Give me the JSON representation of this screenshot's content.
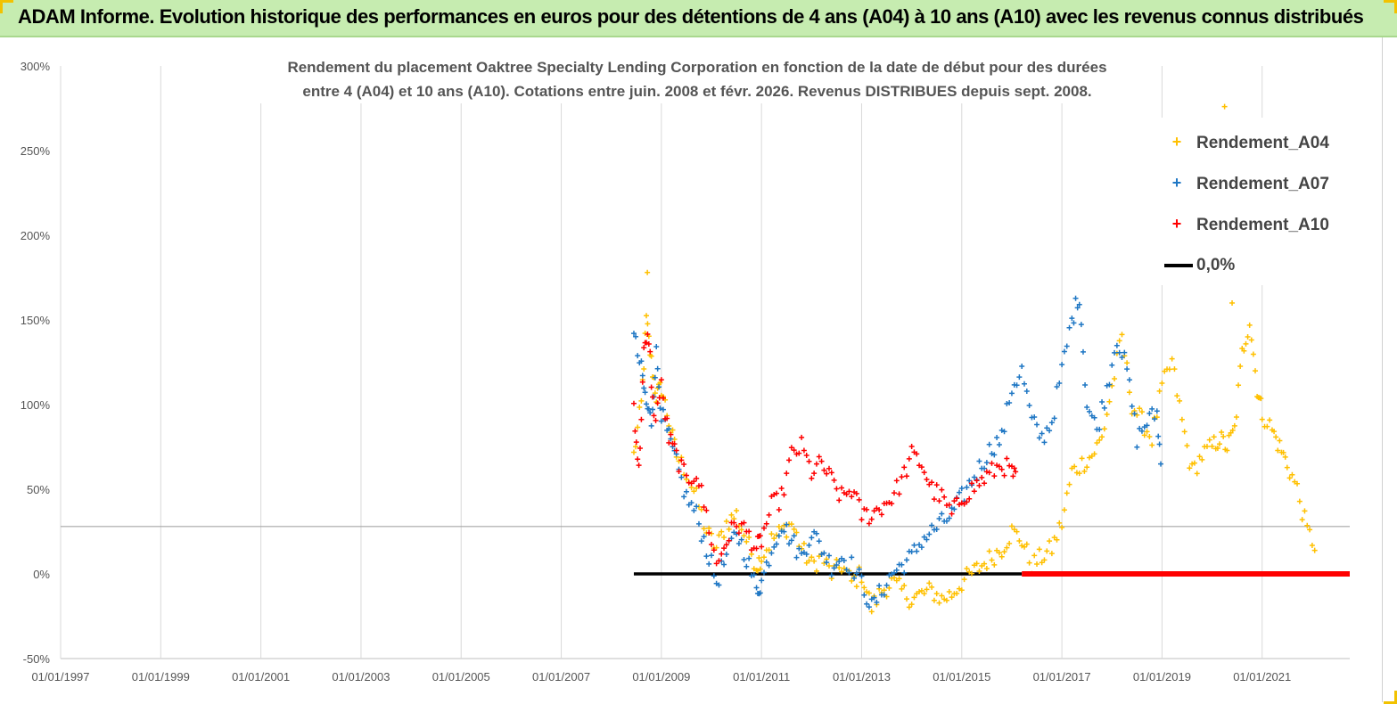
{
  "header": {
    "title": "ADAM Informe. Evolution historique des performances en euros pour des détentions de 4 ans (A04) à 10 ans (A10) avec les revenus connus distribués"
  },
  "chart_data": {
    "type": "scatter",
    "title_line1": "Rendement du placement Oaktree Specialty Lending Corporation en fonction de la date de début pour des durées",
    "title_line2": "entre 4 (A04) et 10 ans (A10).  Cotations entre juin. 2008 et févr. 2026. Revenus DISTRIBUES depuis sept. 2008.",
    "xlabel": "",
    "ylabel": "",
    "xlim": [
      1997.0,
      2022.75
    ],
    "ylim": [
      -50,
      300
    ],
    "yticks": [
      -50,
      0,
      50,
      100,
      150,
      200,
      250,
      300
    ],
    "ytick_labels": [
      "-50%",
      "0%",
      "50%",
      "100%",
      "150%",
      "200%",
      "250%",
      "300%"
    ],
    "xticks": [
      1997,
      1999,
      2001,
      2003,
      2005,
      2007,
      2009,
      2011,
      2013,
      2015,
      2017,
      2019,
      2021
    ],
    "xtick_labels": [
      "01/01/1997",
      "01/01/1999",
      "01/01/2001",
      "01/01/2003",
      "01/01/2005",
      "01/01/2007",
      "01/01/2009",
      "01/01/2011",
      "01/01/2013",
      "01/01/2015",
      "01/01/2017",
      "01/01/2019",
      "01/01/2021"
    ],
    "vertical_grid": true,
    "horizontal_line_at": 28,
    "legend_position": "top-right",
    "series": [
      {
        "name": "Rendement_A04",
        "color": "#ffc000",
        "marker": "plus",
        "x": [
          2008.45,
          2008.6,
          2008.7,
          2008.8,
          2008.9,
          2009.0,
          2009.15,
          2009.3,
          2009.5,
          2009.7,
          2009.9,
          2010.1,
          2010.3,
          2010.5,
          2010.7,
          2010.9,
          2011.0,
          2011.2,
          2011.4,
          2011.6,
          2011.8,
          2012.0,
          2012.2,
          2012.4,
          2012.6,
          2012.8,
          2013.0,
          2013.2,
          2013.4,
          2013.6,
          2013.8,
          2014.0,
          2014.2,
          2014.4,
          2014.6,
          2014.8,
          2015.0,
          2015.2,
          2015.4,
          2015.6,
          2015.8,
          2016.0,
          2016.2,
          2016.4,
          2016.6,
          2016.8,
          2017.0,
          2017.2,
          2017.4,
          2017.6,
          2017.8,
          2018.0,
          2018.2,
          2018.4,
          2018.6,
          2018.8,
          2019.0,
          2019.2,
          2019.4,
          2019.6,
          2019.8,
          2020.0,
          2020.15,
          2020.3,
          2020.45,
          2020.6,
          2020.75,
          2020.9,
          2021.0,
          2021.2,
          2021.35,
          2021.5,
          2021.7,
          2021.9,
          2022.1
        ],
        "y": [
          70,
          100,
          150,
          125,
          105,
          110,
          90,
          70,
          60,
          45,
          25,
          15,
          30,
          35,
          20,
          5,
          10,
          20,
          25,
          30,
          15,
          5,
          10,
          0,
          5,
          -5,
          0,
          -20,
          -10,
          -5,
          -10,
          -15,
          -12,
          -10,
          -15,
          -12,
          -5,
          0,
          5,
          10,
          15,
          25,
          20,
          5,
          10,
          15,
          30,
          60,
          65,
          70,
          80,
          110,
          140,
          100,
          90,
          80,
          110,
          125,
          90,
          60,
          70,
          75,
          80,
          75,
          85,
          130,
          150,
          110,
          95,
          85,
          75,
          65,
          50,
          25,
          15
        ],
        "outliers": [
          {
            "x": 2008.72,
            "y": 178
          },
          {
            "x": 2020.25,
            "y": 276
          },
          {
            "x": 2020.4,
            "y": 160
          }
        ]
      },
      {
        "name": "Rendement_A07",
        "color": "#1f77c4",
        "marker": "plus",
        "x": [
          2008.45,
          2008.6,
          2008.7,
          2008.8,
          2008.9,
          2009.0,
          2009.15,
          2009.3,
          2009.5,
          2009.7,
          2009.9,
          2010.1,
          2010.3,
          2010.5,
          2010.7,
          2010.9,
          2011.0,
          2011.2,
          2011.4,
          2011.6,
          2011.8,
          2012.0,
          2012.2,
          2012.4,
          2012.6,
          2012.8,
          2013.0,
          2013.2,
          2013.4,
          2013.6,
          2013.8,
          2014.0,
          2014.2,
          2014.4,
          2014.6,
          2014.8,
          2015.0,
          2015.2,
          2015.4,
          2015.6,
          2015.8,
          2016.0,
          2016.2,
          2016.4,
          2016.6,
          2016.8,
          2017.0,
          2017.2,
          2017.35,
          2017.5,
          2017.7,
          2017.9,
          2018.1,
          2018.3,
          2018.5,
          2018.7,
          2018.9,
          2019.0
        ],
        "y": [
          140,
          120,
          100,
          90,
          130,
          95,
          80,
          65,
          45,
          35,
          15,
          -5,
          10,
          25,
          10,
          -10,
          -5,
          15,
          30,
          20,
          10,
          25,
          15,
          5,
          10,
          5,
          -5,
          -20,
          -10,
          0,
          5,
          10,
          20,
          25,
          30,
          35,
          45,
          55,
          65,
          75,
          80,
          110,
          120,
          90,
          80,
          90,
          120,
          150,
          165,
          100,
          85,
          110,
          140,
          120,
          80,
          90,
          95,
          55
        ]
      },
      {
        "name": "Rendement_A10",
        "color": "#ff0000",
        "marker": "plus",
        "x": [
          2008.45,
          2008.55,
          2008.65,
          2008.75,
          2008.85,
          2009.0,
          2009.15,
          2009.3,
          2009.5,
          2009.7,
          2009.9,
          2010.1,
          2010.3,
          2010.5,
          2010.7,
          2010.9,
          2011.0,
          2011.2,
          2011.4,
          2011.6,
          2011.8,
          2012.0,
          2012.2,
          2012.4,
          2012.6,
          2012.8,
          2013.0,
          2013.2,
          2013.4,
          2013.6,
          2013.8,
          2014.0,
          2014.2,
          2014.4,
          2014.6,
          2014.8,
          2015.0,
          2015.2,
          2015.4,
          2015.6,
          2015.8,
          2016.0,
          2016.1
        ],
        "y": [
          100,
          60,
          130,
          140,
          90,
          110,
          80,
          70,
          55,
          60,
          35,
          5,
          20,
          30,
          25,
          15,
          20,
          40,
          45,
          70,
          75,
          60,
          65,
          55,
          45,
          50,
          35,
          35,
          40,
          45,
          55,
          70,
          65,
          50,
          45,
          35,
          45,
          50,
          55,
          60,
          65,
          60,
          55
        ],
        "flat_zero_x": [
          2016.2,
          2022.75
        ]
      },
      {
        "name": "0,0%",
        "color": "#000000",
        "marker": "line",
        "x": [
          2008.45,
          2016.2
        ],
        "y": [
          0,
          0
        ]
      }
    ]
  }
}
